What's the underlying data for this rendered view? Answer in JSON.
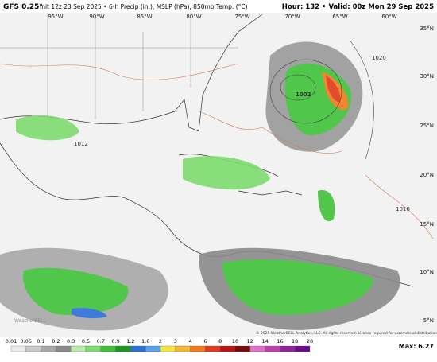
{
  "header": {
    "model": "GFS 0.25°",
    "description": "Init 12z 23 Sep 2025 • 6-h Precip (in.), MSLP (hPa), 850mb Temp. (°C)",
    "valid": "Hour: 132 • Valid: 00z Mon 29 Sep 2025"
  },
  "map": {
    "longitude_labels": [
      "95°W",
      "90°W",
      "85°W",
      "80°W",
      "75°W",
      "70°W",
      "65°W",
      "60°W"
    ],
    "latitude_labels": [
      "35°N",
      "30°N",
      "25°N",
      "20°N",
      "15°N",
      "10°N",
      "5°N"
    ],
    "isobar_labels": [
      "1002",
      "1020",
      "1016",
      "1012"
    ],
    "watermark": "WeatherBELL",
    "copyright": "© 2025 WeatherBELL Analytics, LLC. All rights reserved. License required for commercial distribution."
  },
  "colorbar": {
    "labels": [
      "0.01",
      "0.05",
      "0.1",
      "0.2",
      "0.3",
      "0.5",
      "0.7",
      "0.9",
      "1.2",
      "1.6",
      "2",
      "3",
      "4",
      "6",
      "8",
      "10",
      "12",
      "14",
      "16",
      "18",
      "20"
    ],
    "colors": [
      "#ececec",
      "#c8c8c8",
      "#a8a8a8",
      "#8a8a8a",
      "#b8eca8",
      "#7ddc6e",
      "#3fc23a",
      "#1a9a22",
      "#2b6fd8",
      "#5aa0f0",
      "#f5e63a",
      "#f7b52a",
      "#f27a1a",
      "#e23a1a",
      "#b81212",
      "#7c0808",
      "#e070c8",
      "#c040b0",
      "#9020a0",
      "#6a0a8a"
    ],
    "max_label": "Max: 6.27"
  }
}
